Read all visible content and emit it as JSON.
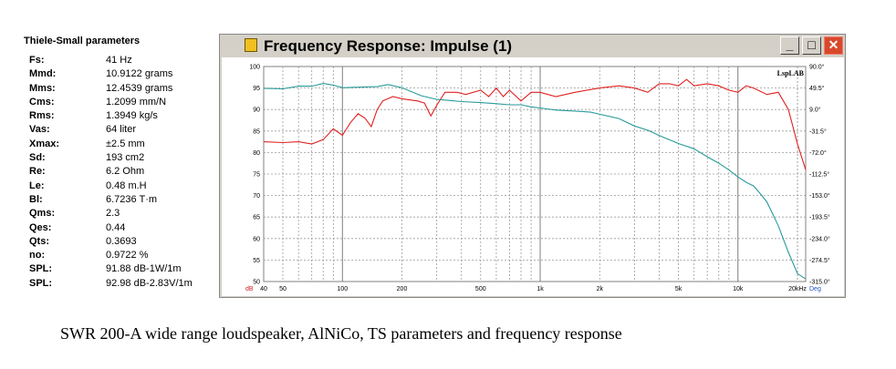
{
  "ts_panel": {
    "title": "Thiele-Small parameters",
    "rows": [
      {
        "name": "Fs:",
        "value": "41 Hz"
      },
      {
        "name": "Mmd:",
        "value": "10.9122 grams"
      },
      {
        "name": "Mms:",
        "value": "12.4539 grams"
      },
      {
        "name": "Cms:",
        "value": "1.2099 mm/N"
      },
      {
        "name": "Rms:",
        "value": "1.3949 kg/s"
      },
      {
        "name": "Vas:",
        "value": "64 liter"
      },
      {
        "name": "Xmax:",
        "value": "±2.5 mm"
      },
      {
        "name": "Sd:",
        "value": "193 cm2"
      },
      {
        "name": "Re:",
        "value": "6.2 Ohm"
      },
      {
        "name": "Le:",
        "value": "0.48 m.H"
      },
      {
        "name": "Bl:",
        "value": "6.7236 T·m"
      },
      {
        "name": "Qms:",
        "value": "2.3"
      },
      {
        "name": "Qes:",
        "value": "0.44"
      },
      {
        "name": "Qts:",
        "value": "0.3693"
      },
      {
        "name": "no:",
        "value": "0.9722 %"
      },
      {
        "name": "SPL:",
        "value": "91.88 dB-1W/1m"
      },
      {
        "name": "SPL:",
        "value": "92.98 dB-2.83V/1m"
      }
    ]
  },
  "window": {
    "title": "Frequency Response: Impulse (1)",
    "icon": "speaker-icon",
    "buttons": {
      "minimize": "_",
      "maximize": "□",
      "close": "✕"
    }
  },
  "caption": "SWR 200-A wide range loudspeaker, AlNiCo, TS parameters and frequency response",
  "chart_data": {
    "type": "line",
    "watermark": "LspLAB",
    "x_scale": "log",
    "xlim": [
      40,
      22000
    ],
    "ylim": [
      50,
      100
    ],
    "y2lim": [
      -315,
      90
    ],
    "x_ticks": [
      {
        "value": 40,
        "label": "40"
      },
      {
        "value": 50,
        "label": "50"
      },
      {
        "value": 100,
        "label": "100"
      },
      {
        "value": 200,
        "label": "200"
      },
      {
        "value": 500,
        "label": "500"
      },
      {
        "value": 1000,
        "label": "1k"
      },
      {
        "value": 2000,
        "label": "2k"
      },
      {
        "value": 5000,
        "label": "5k"
      },
      {
        "value": 10000,
        "label": "10k"
      },
      {
        "value": 20000,
        "label": "20kHz"
      }
    ],
    "x_unit_left": "dB",
    "x_unit_right": "Deg",
    "y_ticks": [
      100,
      95,
      90,
      85,
      80,
      75,
      70,
      65,
      60,
      55,
      50
    ],
    "y_tick_labels": [
      "100",
      "95",
      "90",
      "85",
      "80",
      "75",
      "70",
      "65",
      "60",
      "55",
      "50"
    ],
    "y2_ticks": [
      {
        "value": 90,
        "label": "90.0°"
      },
      {
        "value": 49.5,
        "label": "49.5°"
      },
      {
        "value": 9,
        "label": "9.0°"
      },
      {
        "value": -31.5,
        "label": "-31.5°"
      },
      {
        "value": -72,
        "label": "-72.0°"
      },
      {
        "value": -112.5,
        "label": "-112.5°"
      },
      {
        "value": -153,
        "label": "-153.0°"
      },
      {
        "value": -193.5,
        "label": "-193.5°"
      },
      {
        "value": -234,
        "label": "-234.0°"
      },
      {
        "value": -274.5,
        "label": "-274.5°"
      },
      {
        "value": -315,
        "label": "-315.0°"
      }
    ],
    "grid": true,
    "series": [
      {
        "color": "#e02020",
        "axis": "left",
        "points": [
          [
            40,
            82.5
          ],
          [
            50,
            82.3
          ],
          [
            60,
            82.5
          ],
          [
            70,
            82
          ],
          [
            80,
            83
          ],
          [
            90,
            85.5
          ],
          [
            100,
            84
          ],
          [
            110,
            87
          ],
          [
            120,
            89
          ],
          [
            130,
            88
          ],
          [
            140,
            86
          ],
          [
            150,
            90
          ],
          [
            160,
            92
          ],
          [
            180,
            93
          ],
          [
            200,
            92.5
          ],
          [
            240,
            92
          ],
          [
            260,
            91.5
          ],
          [
            280,
            88.5
          ],
          [
            300,
            91
          ],
          [
            330,
            94
          ],
          [
            380,
            94
          ],
          [
            420,
            93.5
          ],
          [
            500,
            94.5
          ],
          [
            550,
            93
          ],
          [
            600,
            95
          ],
          [
            650,
            93
          ],
          [
            700,
            94.5
          ],
          [
            800,
            92
          ],
          [
            900,
            94
          ],
          [
            1000,
            94
          ],
          [
            1200,
            93
          ],
          [
            1500,
            94
          ],
          [
            2000,
            95
          ],
          [
            2500,
            95.5
          ],
          [
            3000,
            95
          ],
          [
            3500,
            94
          ],
          [
            4000,
            96
          ],
          [
            4500,
            96
          ],
          [
            5000,
            95.5
          ],
          [
            5500,
            97
          ],
          [
            6000,
            95.5
          ],
          [
            7000,
            96
          ],
          [
            8000,
            95.5
          ],
          [
            9000,
            94.5
          ],
          [
            10000,
            94
          ],
          [
            11000,
            95.5
          ],
          [
            12000,
            95
          ],
          [
            14000,
            93.5
          ],
          [
            16000,
            94
          ],
          [
            18000,
            90
          ],
          [
            20000,
            82
          ],
          [
            22000,
            76
          ]
        ]
      },
      {
        "color": "#2a9a9a",
        "axis": "right",
        "points": [
          [
            40,
            49
          ],
          [
            50,
            48
          ],
          [
            60,
            53
          ],
          [
            70,
            53
          ],
          [
            80,
            58
          ],
          [
            90,
            55
          ],
          [
            100,
            50
          ],
          [
            120,
            51
          ],
          [
            150,
            52
          ],
          [
            170,
            56
          ],
          [
            200,
            50
          ],
          [
            250,
            35
          ],
          [
            300,
            28
          ],
          [
            350,
            26
          ],
          [
            400,
            24
          ],
          [
            500,
            22
          ],
          [
            600,
            20
          ],
          [
            700,
            18
          ],
          [
            800,
            18
          ],
          [
            900,
            14
          ],
          [
            1000,
            12
          ],
          [
            1200,
            8
          ],
          [
            1500,
            6
          ],
          [
            1800,
            4
          ],
          [
            2000,
            0
          ],
          [
            2500,
            -8
          ],
          [
            3000,
            -22
          ],
          [
            3500,
            -30
          ],
          [
            4000,
            -40
          ],
          [
            5000,
            -55
          ],
          [
            6000,
            -65
          ],
          [
            7000,
            -80
          ],
          [
            8000,
            -92
          ],
          [
            9000,
            -105
          ],
          [
            10000,
            -118
          ],
          [
            11000,
            -128
          ],
          [
            12000,
            -135
          ],
          [
            13000,
            -150
          ],
          [
            14000,
            -165
          ],
          [
            16000,
            -210
          ],
          [
            18000,
            -260
          ],
          [
            20000,
            -300
          ],
          [
            22000,
            -310
          ]
        ]
      }
    ]
  }
}
